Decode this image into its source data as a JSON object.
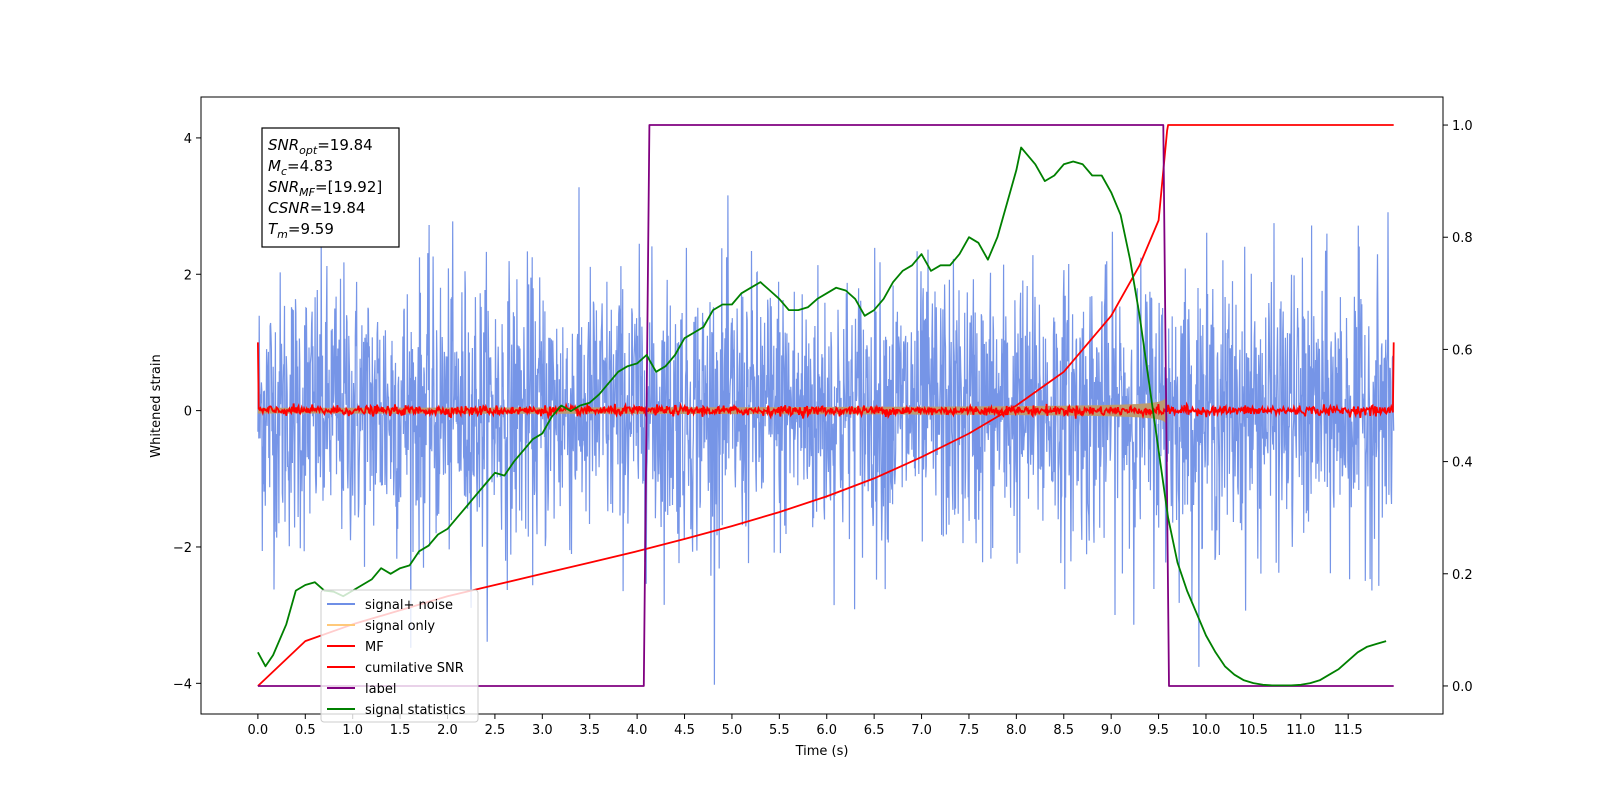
{
  "chart_data": {
    "type": "line",
    "xlabel": "Time (s)",
    "ylabel": "Whitened strain",
    "xlim": [
      -0.6,
      12.5
    ],
    "ylim": [
      -4.45,
      4.6
    ],
    "y2lim": [
      -0.05,
      1.05
    ],
    "xticks": [
      0.0,
      0.5,
      1.0,
      1.5,
      2.0,
      2.5,
      3.0,
      3.5,
      4.0,
      4.5,
      5.0,
      5.5,
      6.0,
      6.5,
      7.0,
      7.5,
      8.0,
      8.5,
      9.0,
      9.5,
      10.0,
      10.5,
      11.0,
      11.5
    ],
    "xtick_labels": [
      "0.0",
      "0.5",
      "1.0",
      "1.5",
      "2.0",
      "2.5",
      "3.0",
      "3.5",
      "4.0",
      "4.5",
      "5.0",
      "5.5",
      "6.0",
      "6.5",
      "7.0",
      "7.5",
      "8.0",
      "8.5",
      "9.0",
      "9.5",
      "10.0",
      "10.5",
      "11.0",
      "11.5"
    ],
    "yticks": [
      -4,
      -2,
      0,
      2,
      4
    ],
    "ytick_labels": [
      "−4",
      "−2",
      "0",
      "2",
      "4"
    ],
    "y2ticks": [
      0.0,
      0.2,
      0.4,
      0.6,
      0.8,
      1.0
    ],
    "y2tick_labels": [
      "0.0",
      "0.2",
      "0.4",
      "0.6",
      "0.8",
      "1.0"
    ],
    "annotation": [
      {
        "base": "SNR",
        "sub": "opt",
        "rest": "=19.84"
      },
      {
        "base": "M",
        "sub": "c",
        "rest": "=4.83"
      },
      {
        "base": "SNR",
        "sub": "MF",
        "rest": "=[19.92]"
      },
      {
        "base": "CSNR",
        "sub": "",
        "rest": "=19.84"
      },
      {
        "base": "T",
        "sub": "m",
        "rest": "=9.59"
      }
    ],
    "legend": {
      "position": "lower-left",
      "entries": [
        {
          "label": "signal+ noise",
          "color": "#6f8fe6"
        },
        {
          "label": "signal only",
          "color": "#ffc97a"
        },
        {
          "label": "MF",
          "color": "#ff0000"
        },
        {
          "label": "cumilative SNR",
          "color": "#ff0000"
        },
        {
          "label": "label",
          "color": "#800080"
        },
        {
          "label": "signal statistics",
          "color": "#008000"
        }
      ]
    },
    "series": [
      {
        "name": "signal+ noise",
        "axis": "left",
        "color": "#6f8fe6",
        "t_start": 0.0,
        "t_end": 11.98,
        "noise_sigma": 1.0,
        "envelope_max": 4.15
      },
      {
        "name": "signal only",
        "axis": "left",
        "color": "#ffc97a",
        "t_start": 0.0,
        "t_merger": 9.59,
        "amp_start": 0.07,
        "amp_peak": 1.95
      },
      {
        "name": "MF",
        "axis": "left",
        "color": "#ff0000",
        "t_start": 0.0,
        "t_end": 11.98,
        "edge_value": 1.0,
        "noise_level": 0.05
      },
      {
        "name": "cumilative SNR",
        "axis": "right",
        "color": "#ff0000",
        "t": [
          0.0,
          0.5,
          1.0,
          1.5,
          2.0,
          2.5,
          3.0,
          3.5,
          4.0,
          4.5,
          5.0,
          5.5,
          6.0,
          6.5,
          7.0,
          7.5,
          8.0,
          8.5,
          9.0,
          9.3,
          9.5,
          9.59,
          9.6,
          11.98
        ],
        "v": [
          0.0,
          0.08,
          0.11,
          0.135,
          0.16,
          0.18,
          0.2,
          0.22,
          0.24,
          0.262,
          0.285,
          0.31,
          0.338,
          0.37,
          0.408,
          0.45,
          0.5,
          0.56,
          0.66,
          0.75,
          0.83,
          0.99,
          1.0,
          1.0
        ]
      },
      {
        "name": "label",
        "axis": "right",
        "color": "#800080",
        "t": [
          0.0,
          4.07,
          4.13,
          9.55,
          9.61,
          11.98
        ],
        "v": [
          0.0,
          0.0,
          1.0,
          1.0,
          0.0,
          0.0
        ]
      },
      {
        "name": "signal statistics",
        "axis": "right",
        "color": "#008000",
        "t": [
          0.0,
          0.08,
          0.16,
          0.3,
          0.4,
          0.5,
          0.6,
          0.7,
          0.8,
          0.9,
          1.0,
          1.1,
          1.2,
          1.3,
          1.4,
          1.5,
          1.6,
          1.7,
          1.8,
          1.9,
          2.0,
          2.1,
          2.2,
          2.3,
          2.4,
          2.5,
          2.6,
          2.7,
          2.8,
          2.9,
          3.0,
          3.1,
          3.2,
          3.3,
          3.4,
          3.5,
          3.6,
          3.7,
          3.8,
          3.9,
          4.0,
          4.1,
          4.2,
          4.3,
          4.4,
          4.5,
          4.6,
          4.7,
          4.8,
          4.9,
          5.0,
          5.1,
          5.2,
          5.3,
          5.4,
          5.5,
          5.6,
          5.7,
          5.8,
          5.9,
          6.0,
          6.1,
          6.2,
          6.3,
          6.4,
          6.5,
          6.6,
          6.7,
          6.8,
          6.9,
          7.0,
          7.1,
          7.2,
          7.3,
          7.4,
          7.5,
          7.6,
          7.7,
          7.8,
          7.9,
          8.0,
          8.05,
          8.1,
          8.2,
          8.3,
          8.4,
          8.5,
          8.6,
          8.7,
          8.8,
          8.9,
          9.0,
          9.1,
          9.2,
          9.3,
          9.4,
          9.5,
          9.6,
          9.7,
          9.8,
          9.9,
          10.0,
          10.1,
          10.2,
          10.3,
          10.4,
          10.5,
          10.6,
          10.7,
          10.8,
          10.9,
          11.0,
          11.1,
          11.2,
          11.3,
          11.4,
          11.5,
          11.6,
          11.7,
          11.8,
          11.9
        ],
        "v": [
          0.06,
          0.035,
          0.055,
          0.11,
          0.17,
          0.18,
          0.185,
          0.17,
          0.168,
          0.16,
          0.17,
          0.18,
          0.19,
          0.21,
          0.2,
          0.21,
          0.215,
          0.24,
          0.25,
          0.27,
          0.28,
          0.3,
          0.32,
          0.34,
          0.36,
          0.38,
          0.375,
          0.4,
          0.42,
          0.44,
          0.45,
          0.48,
          0.5,
          0.49,
          0.5,
          0.505,
          0.52,
          0.54,
          0.56,
          0.57,
          0.575,
          0.59,
          0.56,
          0.57,
          0.59,
          0.62,
          0.63,
          0.64,
          0.67,
          0.68,
          0.68,
          0.7,
          0.71,
          0.72,
          0.705,
          0.69,
          0.67,
          0.67,
          0.675,
          0.69,
          0.7,
          0.71,
          0.705,
          0.69,
          0.66,
          0.67,
          0.69,
          0.72,
          0.74,
          0.75,
          0.77,
          0.74,
          0.75,
          0.75,
          0.77,
          0.8,
          0.79,
          0.76,
          0.8,
          0.86,
          0.92,
          0.96,
          0.95,
          0.93,
          0.9,
          0.91,
          0.93,
          0.935,
          0.93,
          0.91,
          0.91,
          0.88,
          0.84,
          0.76,
          0.66,
          0.54,
          0.42,
          0.3,
          0.22,
          0.17,
          0.13,
          0.09,
          0.06,
          0.035,
          0.02,
          0.01,
          0.005,
          0.002,
          0.001,
          0.001,
          0.001,
          0.002,
          0.005,
          0.01,
          0.02,
          0.03,
          0.045,
          0.06,
          0.07,
          0.075,
          0.08
        ]
      }
    ]
  }
}
